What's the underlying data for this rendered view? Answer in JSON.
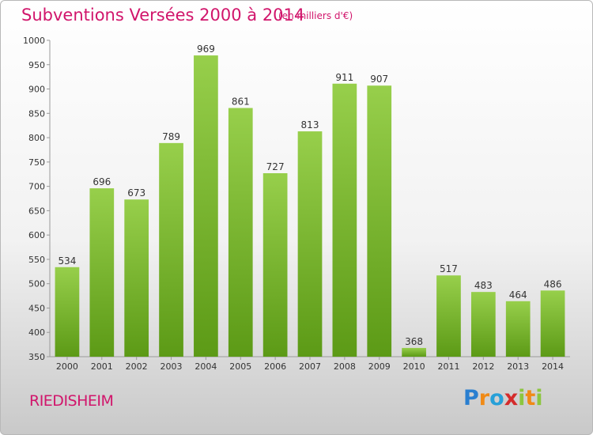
{
  "header": {
    "title": "Subventions Versées 2000 à 2014",
    "unit": "(en milliers d'€)"
  },
  "footer": {
    "commune": "RIEDISHEIM",
    "logo": "Proxiti"
  },
  "colors": {
    "bar_top": "#97cf4b",
    "bar_bottom": "#5c9a16",
    "title": "#d1156b"
  },
  "chart_data": {
    "type": "bar",
    "title": "Subventions Versées 2000 à 2014",
    "subtitle": "(en milliers d'€)",
    "categories": [
      "2000",
      "2001",
      "2002",
      "2003",
      "2004",
      "2005",
      "2006",
      "2007",
      "2008",
      "2009",
      "2010",
      "2011",
      "2012",
      "2013",
      "2014"
    ],
    "values": [
      534,
      696,
      673,
      789,
      969,
      861,
      727,
      813,
      911,
      907,
      368,
      517,
      483,
      464,
      486
    ],
    "ylim": [
      350,
      1000
    ],
    "yticks": [
      350,
      400,
      450,
      500,
      550,
      600,
      650,
      700,
      750,
      800,
      850,
      900,
      950,
      1000
    ],
    "grid": false,
    "data_labels": true
  }
}
